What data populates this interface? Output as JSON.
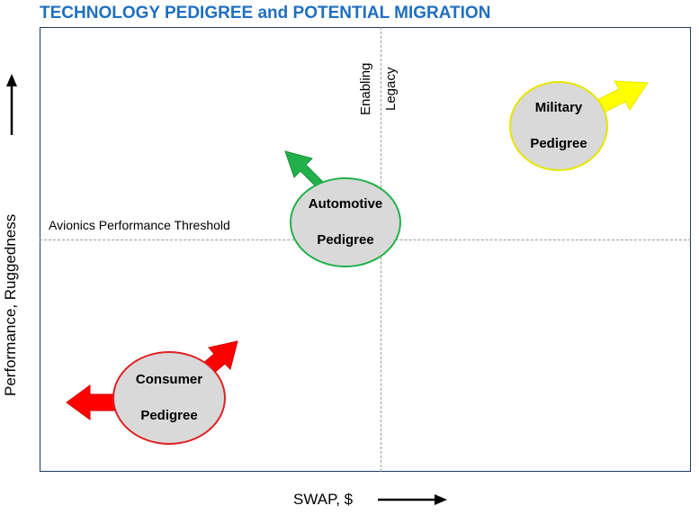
{
  "title": "TECHNOLOGY PEDIGREE and POTENTIAL MIGRATION",
  "axes": {
    "y_label": "Performance, Ruggedness",
    "x_label": "SWAP, $"
  },
  "lines": {
    "threshold_label": "Avionics Performance Threshold",
    "enabling_label": "Enabling",
    "legacy_label": "Legacy"
  },
  "pedigrees": {
    "military": {
      "line1": "Military",
      "line2": "Pedigree",
      "color": "#ffff00",
      "border": "#e6e600"
    },
    "automotive": {
      "line1": "Automotive",
      "line2": "Pedigree",
      "color": "#22b04b",
      "border": "#22b04b"
    },
    "consumer": {
      "line1": "Consumer",
      "line2": "Pedigree",
      "color": "#ff0000",
      "border": "#e02020"
    }
  }
}
